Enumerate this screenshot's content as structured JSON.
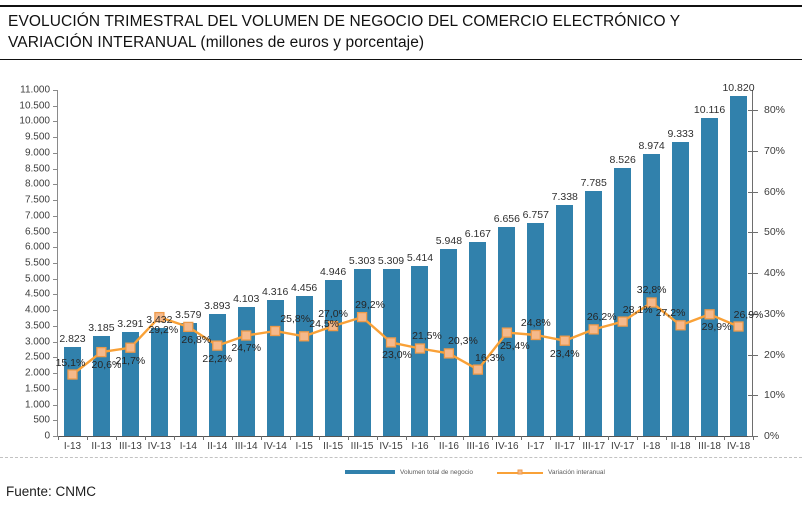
{
  "title": {
    "line1": "EVOLUCIÓN TRIMESTRAL DEL VOLUMEN DE NEGOCIO DEL COMERCIO ELECTRÓNICO Y",
    "line2": "VARIACIÓN INTERANUAL (millones de euros y porcentaje)"
  },
  "source": "Fuente: CNMC",
  "legend": {
    "bar_label": "Volumen total de negocio",
    "line_label": "Variación interanual"
  },
  "colors": {
    "bar": "#3181AC",
    "line": "#F9A137",
    "marker_fill": "#F5B98B",
    "marker_border": "#EE9A49",
    "axis": "#6e6e6e",
    "label": "#303030"
  },
  "chart_data": {
    "type": "bar",
    "title": "EVOLUCIÓN TRIMESTRAL DEL VOLUMEN DE NEGOCIO DEL COMERCIO ELECTRÓNICO Y VARIACIÓN INTERANUAL (millones de euros y porcentaje)",
    "grid": false,
    "legend_position": "bottom",
    "categories": [
      "I-13",
      "II-13",
      "III-13",
      "IV-13",
      "I-14",
      "II-14",
      "III-14",
      "IV-14",
      "I-15",
      "II-15",
      "III-15",
      "IV-15",
      "I-16",
      "II-16",
      "III-16",
      "IV-16",
      "I-17",
      "II-17",
      "III-17",
      "IV-17",
      "I-18",
      "II-18",
      "III-18",
      "IV-18"
    ],
    "series": [
      {
        "name": "Volumen total de negocio",
        "type": "bar",
        "axis": "left",
        "values": [
          2823,
          3185,
          3291,
          3432,
          3579,
          3893,
          4103,
          4316,
          4456,
          4946,
          5303,
          5309,
          5414,
          5948,
          6167,
          6656,
          6757,
          7338,
          7785,
          8526,
          8974,
          9333,
          10116,
          10820
        ],
        "data_labels": [
          "2.823",
          "3.185",
          "3.291",
          "3.432",
          "3.579",
          "3.893",
          "4.103",
          "4.316",
          "4.456",
          "4.946",
          "5.303",
          "5.309",
          "5.414",
          "5.948",
          "6.167",
          "6.656",
          "6.757",
          "7.338",
          "7.785",
          "8.526",
          "8.974",
          "9.333",
          "10.116",
          "10.820"
        ]
      },
      {
        "name": "Variación interanual",
        "type": "line",
        "axis": "right",
        "values": [
          15.1,
          20.6,
          21.7,
          29.2,
          26.8,
          22.2,
          24.7,
          25.8,
          24.5,
          27.0,
          29.2,
          23.0,
          21.5,
          20.3,
          16.3,
          25.4,
          24.8,
          23.4,
          26.2,
          28.1,
          32.8,
          27.2,
          29.9,
          26.9
        ],
        "data_labels": [
          "15,1%",
          "20,6%",
          "21,7%",
          "29,2%",
          "26,8%",
          "22,2%",
          "24,7%",
          "25,8%",
          "24,5%",
          "27,0%",
          "29,2%",
          "23,0%",
          "21,5%",
          "20,3%",
          "16,3%",
          "25,4%",
          "24,8%",
          "23,4%",
          "26,2%",
          "28,1%",
          "32,8%",
          "27,2%",
          "29,9%",
          "26,9%"
        ]
      }
    ],
    "label_layout": {
      "position": [
        "above",
        "below",
        "below",
        "below",
        "below",
        "below",
        "below",
        "above",
        "above",
        "above",
        "above",
        "below",
        "above",
        "above",
        "above",
        "below",
        "above",
        "below",
        "above",
        "above",
        "above",
        "above",
        "below",
        "above"
      ],
      "dx": [
        -2,
        5,
        0,
        4,
        8,
        0,
        0,
        20,
        20,
        0,
        8,
        6,
        7,
        14,
        12,
        8,
        0,
        0,
        8,
        15,
        0,
        -10,
        7,
        10
      ]
    },
    "left_axis": {
      "min": 0,
      "max": 11000,
      "step": 500,
      "tick_labels": [
        "0",
        "500",
        "1.000",
        "1.500",
        "2.000",
        "2.500",
        "3.000",
        "3.500",
        "4.000",
        "4.500",
        "5.000",
        "5.500",
        "6.000",
        "6.500",
        "7.000",
        "7.500",
        "8.000",
        "8.500",
        "9.000",
        "9.500",
        "10.000",
        "10.500",
        "11.000"
      ]
    },
    "right_axis": {
      "min": 0,
      "max": 85,
      "tick_step": 10,
      "tick_labels": [
        "0%",
        "10%",
        "20%",
        "30%",
        "40%",
        "50%",
        "60%",
        "70%",
        "80%"
      ]
    }
  }
}
